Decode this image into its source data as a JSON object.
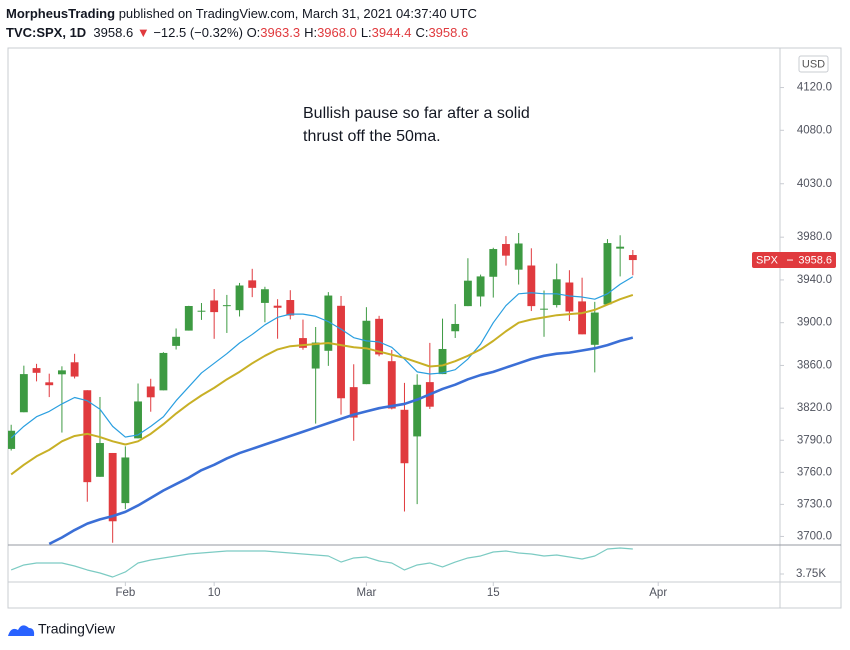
{
  "header": {
    "user": "MorpheusTrading",
    "byline": "published on TradingView.com, March 31, 2021 04:37:40 UTC",
    "symbol": "TVC:SPX, 1D",
    "last": "3958.6",
    "arrow": "▼",
    "change": "−12.5 (−0.32%)",
    "ohlc": [
      {
        "label": "O:",
        "value": "3963.3"
      },
      {
        "label": "H:",
        "value": "3968.0"
      },
      {
        "label": "L:",
        "value": "3944.4"
      },
      {
        "label": "C:",
        "value": "3958.6"
      }
    ]
  },
  "footer": {
    "brand": "TradingView"
  },
  "chart_data": {
    "type": "candlestick",
    "annotation": "Bullish pause so far after a solid thrust off the 50ma.",
    "currency": "USD",
    "symbol_tag": "SPX",
    "up_color": "#3d9a42",
    "down_color": "#e03a3e",
    "candles": {
      "open": [
        3781.9,
        3816.2,
        3857.5,
        3844.2,
        3851.7,
        3862.96,
        3836.8,
        3755.8,
        3778.1,
        3731.2,
        3791.8,
        3840.3,
        3836.7,
        3878.3,
        3892.6,
        3910.5,
        3920.8,
        3916.4,
        3911.7,
        3939.6,
        3918.5,
        3915.9,
        3921.2,
        3885.6,
        3857.1,
        3873.7,
        3915.8,
        3839.7,
        3842.5,
        3903.6,
        3863.99,
        3818.5,
        3793.6,
        3844.4,
        3851.9,
        3891.99,
        3915.5,
        3924.5,
        3942.96,
        3973.6,
        3949.6,
        3953.5,
        3913.1,
        3916.5,
        3937.6,
        3919.9,
        3879.3,
        3917.1,
        3969.3,
        3963.3
      ],
      "high": [
        3804.5,
        3859.8,
        3861.5,
        3852.3,
        3859.2,
        3870.9,
        3836.8,
        3830.5,
        3778.1,
        3784.3,
        3843.1,
        3847.5,
        3872.4,
        3894.6,
        3915.8,
        3918.4,
        3931.5,
        3925.99,
        3937.2,
        3950.4,
        3933.6,
        3921.98,
        3930.4,
        3902.9,
        3895.98,
        3928.6,
        3925.0,
        3861.1,
        3914.5,
        3906.4,
        3874.5,
        3843.7,
        3851.7,
        3881.1,
        3903.8,
        3917.4,
        3960.3,
        3944.99,
        3970.1,
        3981.0,
        3983.9,
        3969.6,
        3930.1,
        3955.3,
        3949.1,
        3942.1,
        3919.5,
        3978.2,
        3981.8,
        3968.0
      ],
      "low": [
        3780.4,
        3816.2,
        3845.1,
        3830.4,
        3797.2,
        3847.8,
        3732.5,
        3755.8,
        3694.1,
        3725.6,
        3791.8,
        3816.7,
        3836.7,
        3874.9,
        3892.6,
        3902.6,
        3884.9,
        3890.4,
        3905.8,
        3923.9,
        3900.4,
        3885.0,
        3903.1,
        3874.7,
        3805.6,
        3859.6,
        3814.0,
        3789.5,
        3842.5,
        3868.6,
        3818.9,
        3723.3,
        3730.2,
        3819.3,
        3851.9,
        3885.7,
        3915.5,
        3915.2,
        3923.5,
        3953.4,
        3935.7,
        3910.9,
        3886.8,
        3914.2,
        3901.6,
        3889.1,
        3853.5,
        3917.1,
        3943.3,
        3944.4
      ],
      "close": [
        3798.9,
        3851.9,
        3853.1,
        3841.5,
        3855.4,
        3849.6,
        3750.8,
        3787.4,
        3714.2,
        3773.9,
        3826.3,
        3830.2,
        3871.7,
        3886.8,
        3915.6,
        3911.2,
        3909.9,
        3916.4,
        3934.8,
        3932.6,
        3931.3,
        3913.97,
        3906.7,
        3876.5,
        3881.4,
        3925.4,
        3829.3,
        3811.2,
        3901.8,
        3870.3,
        3819.7,
        3768.5,
        3841.9,
        3821.4,
        3875.4,
        3898.8,
        3939.3,
        3943.3,
        3968.9,
        3962.7,
        3974.1,
        3915.5,
        3913.1,
        3940.6,
        3910.5,
        3889.1,
        3909.5,
        3974.5,
        3971.1,
        3958.6
      ]
    },
    "overlays": [
      {
        "color": "#2a9fe0",
        "width": 1.2,
        "values": [
          3792,
          3803,
          3812,
          3817,
          3824,
          3830,
          3827,
          3819,
          3803,
          3793,
          3795,
          3803,
          3812,
          3827,
          3840,
          3853,
          3862,
          3871,
          3881,
          3889,
          3898,
          3905,
          3908,
          3908,
          3906,
          3901,
          3894,
          3886,
          3883,
          3882,
          3877,
          3866,
          3854,
          3852,
          3853,
          3856,
          3866,
          3880,
          3900,
          3916,
          3927,
          3928,
          3927,
          3927,
          3925,
          3924,
          3922,
          3927,
          3936,
          3943
        ]
      },
      {
        "color": "#c8b026",
        "width": 2,
        "values": [
          3758,
          3767,
          3775,
          3781,
          3789,
          3794,
          3796,
          3793,
          3789,
          3786,
          3789,
          3796,
          3805,
          3815,
          3824,
          3832,
          3839,
          3847,
          3854,
          3862,
          3869,
          3875,
          3878,
          3879,
          3880,
          3881,
          3879,
          3877,
          3876,
          3873,
          3870,
          3867,
          3863,
          3859,
          3860,
          3864,
          3869,
          3875,
          3883,
          3892,
          3900,
          3903,
          3905,
          3907,
          3908,
          3909,
          3912,
          3917,
          3922,
          3926
        ]
      },
      {
        "color": "#3b6fd6",
        "width": 2.6,
        "values": [
          null,
          null,
          null,
          3693,
          3699,
          3706,
          3712,
          3716,
          3719,
          3723,
          3729,
          3736,
          3743,
          3749,
          3755,
          3762,
          3767,
          3773,
          3778,
          3782,
          3786,
          3790,
          3794,
          3798,
          3802,
          3806,
          3810,
          3814,
          3817,
          3820,
          3822,
          3824,
          3828,
          3833,
          3838,
          3842,
          3847,
          3851,
          3854,
          3858,
          3862,
          3866,
          3869,
          3871,
          3872,
          3874,
          3876,
          3879,
          3883,
          3886
        ]
      }
    ],
    "ylim": [
      3692,
      4157
    ],
    "yticks": [
      {
        "value": 4120,
        "label": "4120.0"
      },
      {
        "value": 4080,
        "label": "4080.0"
      },
      {
        "value": 4030,
        "label": "4030.0"
      },
      {
        "value": 3980,
        "label": "3980.0"
      },
      {
        "value": 3940,
        "label": "3940.0"
      },
      {
        "value": 3900,
        "label": "3900.0"
      },
      {
        "value": 3860,
        "label": "3860.0"
      },
      {
        "value": 3820,
        "label": "3820.0"
      },
      {
        "value": 3790,
        "label": "3790.0"
      },
      {
        "value": 3760,
        "label": "3760.0"
      },
      {
        "value": 3730,
        "label": "3730.0"
      },
      {
        "value": 3700,
        "label": "3700.0"
      }
    ],
    "grid": false,
    "xlim": [
      -0.25,
      60.6
    ],
    "xticks": [
      {
        "value": 9,
        "label": "Feb"
      },
      {
        "value": 16,
        "label": "10"
      },
      {
        "value": 28,
        "label": "Mar"
      },
      {
        "value": 38,
        "label": "15"
      },
      {
        "value": 51,
        "label": "Apr"
      }
    ],
    "lower_pane": {
      "color": "#7ccbc3",
      "values": [
        3901,
        4089,
        4164,
        4164,
        4164,
        4051,
        3901,
        3788,
        3638,
        3826,
        4164,
        4277,
        4352,
        4427,
        4502,
        4540,
        4577,
        4615,
        4615,
        4615,
        4615,
        4577,
        4540,
        4502,
        4464,
        4427,
        4201,
        4352,
        4389,
        4239,
        4164,
        3901,
        4089,
        4164,
        4014,
        4201,
        4352,
        4427,
        4577,
        4615,
        4540,
        4502,
        4427,
        4464,
        4389,
        4314,
        4427,
        4690,
        4727,
        4690
      ],
      "ylim": [
        3450,
        4840
      ],
      "yticks": [
        {
          "value": 3750,
          "label": "3.75K"
        }
      ]
    }
  }
}
